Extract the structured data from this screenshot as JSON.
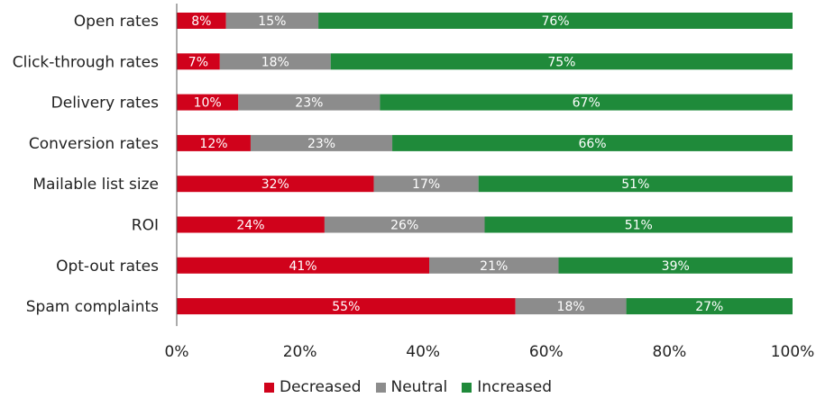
{
  "chart_data": {
    "type": "bar",
    "orientation": "horizontal",
    "stacked": true,
    "categories": [
      "Open rates",
      "Click-through rates",
      "Delivery rates",
      "Conversion rates",
      "Mailable list size",
      "ROI",
      "Opt-out rates",
      "Spam complaints"
    ],
    "series": [
      {
        "name": "Decreased",
        "color": "#d0021b",
        "values": [
          8,
          7,
          10,
          12,
          32,
          24,
          41,
          55
        ]
      },
      {
        "name": "Neutral",
        "color": "#8c8c8c",
        "values": [
          15,
          18,
          23,
          23,
          17,
          26,
          21,
          18
        ]
      },
      {
        "name": "Increased",
        "color": "#1f8a3a",
        "values": [
          76,
          75,
          67,
          66,
          51,
          51,
          39,
          27
        ]
      }
    ],
    "xlim": [
      0,
      100
    ],
    "x_ticks": [
      "0%",
      "20%",
      "40%",
      "60%",
      "80%",
      "100%"
    ],
    "grid": false,
    "legend_position": "bottom"
  }
}
